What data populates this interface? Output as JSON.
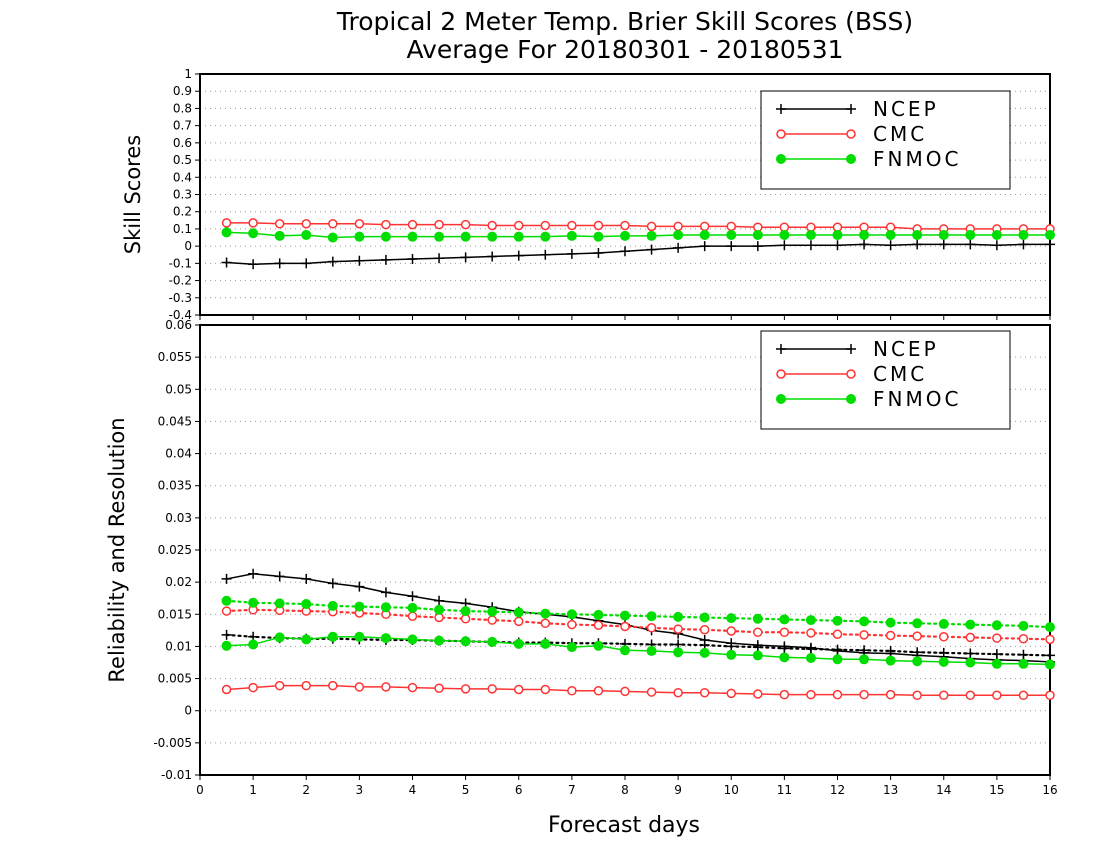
{
  "title_line1": "Tropical 2 Meter Temp. Brier Skill Scores (BSS)",
  "title_line2": "Average For 20180301 - 20180531",
  "xlabel": "Forecast days",
  "colors": {
    "NCEP": "#000000",
    "CMC": "#ff3333",
    "FNMOC": "#00dd00"
  },
  "chart_data": [
    {
      "type": "line",
      "ylabel": "Skill Scores",
      "xlim": [
        0,
        16
      ],
      "ylim": [
        -0.4,
        1
      ],
      "x": [
        0.5,
        1,
        1.5,
        2,
        2.5,
        3,
        3.5,
        4,
        4.5,
        5,
        5.5,
        6,
        6.5,
        7,
        7.5,
        8,
        8.5,
        9,
        9.5,
        10,
        10.5,
        11,
        11.5,
        12,
        12.5,
        13,
        13.5,
        14,
        14.5,
        15,
        15.5,
        16
      ],
      "xticks": [
        "0",
        "1",
        "2",
        "3",
        "4",
        "5",
        "6",
        "7",
        "8",
        "9",
        "10",
        "11",
        "12",
        "13",
        "14",
        "15",
        "16"
      ],
      "yticks": [
        "-0.4",
        "-0.3",
        "-0.2",
        "-0.1",
        "0",
        "0.1",
        "0.2",
        "0.3",
        "0.4",
        "0.5",
        "0.6",
        "0.7",
        "0.8",
        "0.9",
        "1"
      ],
      "grid": true,
      "legend_position": "top-right",
      "series": [
        {
          "name": "NCEP",
          "color": "#000000",
          "marker": "plus",
          "style": "solid",
          "values": [
            -0.095,
            -0.105,
            -0.1,
            -0.1,
            -0.09,
            -0.085,
            -0.08,
            -0.075,
            -0.07,
            -0.065,
            -0.06,
            -0.055,
            -0.05,
            -0.045,
            -0.04,
            -0.03,
            -0.02,
            -0.01,
            0,
            0,
            0,
            0.005,
            0.005,
            0.005,
            0.01,
            0.005,
            0.01,
            0.01,
            0.01,
            0.005,
            0.01,
            0.01
          ]
        },
        {
          "name": "CMC",
          "color": "#ff3333",
          "marker": "circle-open",
          "style": "solid",
          "values": [
            0.135,
            0.135,
            0.13,
            0.13,
            0.13,
            0.13,
            0.125,
            0.125,
            0.125,
            0.125,
            0.12,
            0.12,
            0.12,
            0.12,
            0.12,
            0.12,
            0.115,
            0.115,
            0.115,
            0.115,
            0.11,
            0.11,
            0.11,
            0.11,
            0.11,
            0.11,
            0.1,
            0.1,
            0.1,
            0.1,
            0.1,
            0.1
          ]
        },
        {
          "name": "FNMOC",
          "color": "#00dd00",
          "marker": "circle-filled",
          "style": "solid",
          "values": [
            0.08,
            0.075,
            0.06,
            0.065,
            0.05,
            0.055,
            0.055,
            0.055,
            0.055,
            0.055,
            0.055,
            0.055,
            0.055,
            0.06,
            0.055,
            0.06,
            0.06,
            0.065,
            0.065,
            0.065,
            0.065,
            0.065,
            0.065,
            0.065,
            0.065,
            0.065,
            0.065,
            0.065,
            0.065,
            0.065,
            0.065,
            0.065
          ]
        }
      ]
    },
    {
      "type": "line",
      "ylabel": "Reliability and Resolution",
      "xlim": [
        0,
        16
      ],
      "ylim": [
        -0.01,
        0.06
      ],
      "x": [
        0.5,
        1,
        1.5,
        2,
        2.5,
        3,
        3.5,
        4,
        4.5,
        5,
        5.5,
        6,
        6.5,
        7,
        7.5,
        8,
        8.5,
        9,
        9.5,
        10,
        10.5,
        11,
        11.5,
        12,
        12.5,
        13,
        13.5,
        14,
        14.5,
        15,
        15.5,
        16
      ],
      "xticks": [
        "0",
        "1",
        "2",
        "3",
        "4",
        "5",
        "6",
        "7",
        "8",
        "9",
        "10",
        "11",
        "12",
        "13",
        "14",
        "15",
        "16"
      ],
      "yticks": [
        "-0.01",
        "-0.005",
        "0",
        "0.005",
        "0.01",
        "0.015",
        "0.02",
        "0.025",
        "0.03",
        "0.035",
        "0.04",
        "0.045",
        "0.05",
        "0.055",
        "0.06"
      ],
      "grid": true,
      "legend_position": "top-right",
      "series": [
        {
          "name": "NCEP",
          "color": "#000000",
          "marker": "plus",
          "style": "solid",
          "values": [
            0.0205,
            0.0213,
            0.0209,
            0.0205,
            0.0198,
            0.0193,
            0.0184,
            0.0178,
            0.0171,
            0.0167,
            0.0161,
            0.0154,
            0.015,
            0.0146,
            0.014,
            0.0134,
            0.0125,
            0.012,
            0.011,
            0.0105,
            0.0102,
            0.01,
            0.0098,
            0.0093,
            0.009,
            0.0089,
            0.0086,
            0.0084,
            0.0081,
            0.0079,
            0.0078,
            0.0076
          ]
        },
        {
          "name": "NCEP",
          "color": "#000000",
          "marker": "plus",
          "style": "dotted",
          "values": [
            0.0118,
            0.0115,
            0.0113,
            0.0112,
            0.0112,
            0.0111,
            0.011,
            0.011,
            0.0109,
            0.0108,
            0.0107,
            0.0106,
            0.0106,
            0.0105,
            0.0105,
            0.0104,
            0.0103,
            0.0103,
            0.0102,
            0.01,
            0.0099,
            0.0097,
            0.0096,
            0.0095,
            0.0094,
            0.0093,
            0.0091,
            0.009,
            0.0089,
            0.0088,
            0.0087,
            0.0086
          ]
        },
        {
          "name": "CMC",
          "color": "#ff3333",
          "marker": "circle-open",
          "style": "solid",
          "values": [
            0.0033,
            0.0036,
            0.0039,
            0.0039,
            0.0039,
            0.0037,
            0.0037,
            0.0036,
            0.0035,
            0.0034,
            0.0034,
            0.0033,
            0.0033,
            0.0031,
            0.0031,
            0.003,
            0.0029,
            0.0028,
            0.0028,
            0.0027,
            0.0026,
            0.0025,
            0.0025,
            0.0025,
            0.0025,
            0.0025,
            0.0024,
            0.0024,
            0.0024,
            0.0024,
            0.0024,
            0.0024
          ]
        },
        {
          "name": "CMC",
          "color": "#ff3333",
          "marker": "circle-open",
          "style": "dotted",
          "values": [
            0.0155,
            0.0157,
            0.0156,
            0.0155,
            0.0154,
            0.0152,
            0.015,
            0.0147,
            0.0145,
            0.0143,
            0.0141,
            0.0139,
            0.0136,
            0.0134,
            0.0133,
            0.0131,
            0.0129,
            0.0127,
            0.0126,
            0.0124,
            0.0122,
            0.0122,
            0.0121,
            0.0119,
            0.0118,
            0.0117,
            0.0116,
            0.0115,
            0.0114,
            0.0113,
            0.0112,
            0.0111
          ]
        },
        {
          "name": "FNMOC",
          "color": "#00dd00",
          "marker": "circle-filled",
          "style": "solid",
          "values": [
            0.0101,
            0.0103,
            0.0114,
            0.0111,
            0.0115,
            0.0115,
            0.0113,
            0.0111,
            0.0109,
            0.0108,
            0.0107,
            0.0104,
            0.0104,
            0.0099,
            0.0101,
            0.0094,
            0.0093,
            0.0091,
            0.009,
            0.0087,
            0.0086,
            0.0083,
            0.0082,
            0.008,
            0.008,
            0.0078,
            0.0077,
            0.0076,
            0.0075,
            0.0073,
            0.0073,
            0.0072
          ]
        },
        {
          "name": "FNMOC",
          "color": "#00dd00",
          "marker": "circle-filled",
          "style": "dotted",
          "values": [
            0.0171,
            0.0168,
            0.0167,
            0.0166,
            0.0163,
            0.0162,
            0.0161,
            0.016,
            0.0157,
            0.0155,
            0.0154,
            0.0153,
            0.0151,
            0.015,
            0.0149,
            0.0148,
            0.0147,
            0.0146,
            0.0145,
            0.0144,
            0.0143,
            0.0142,
            0.0141,
            0.014,
            0.0139,
            0.0137,
            0.0136,
            0.0135,
            0.0134,
            0.0133,
            0.0132,
            0.013
          ]
        }
      ]
    }
  ]
}
